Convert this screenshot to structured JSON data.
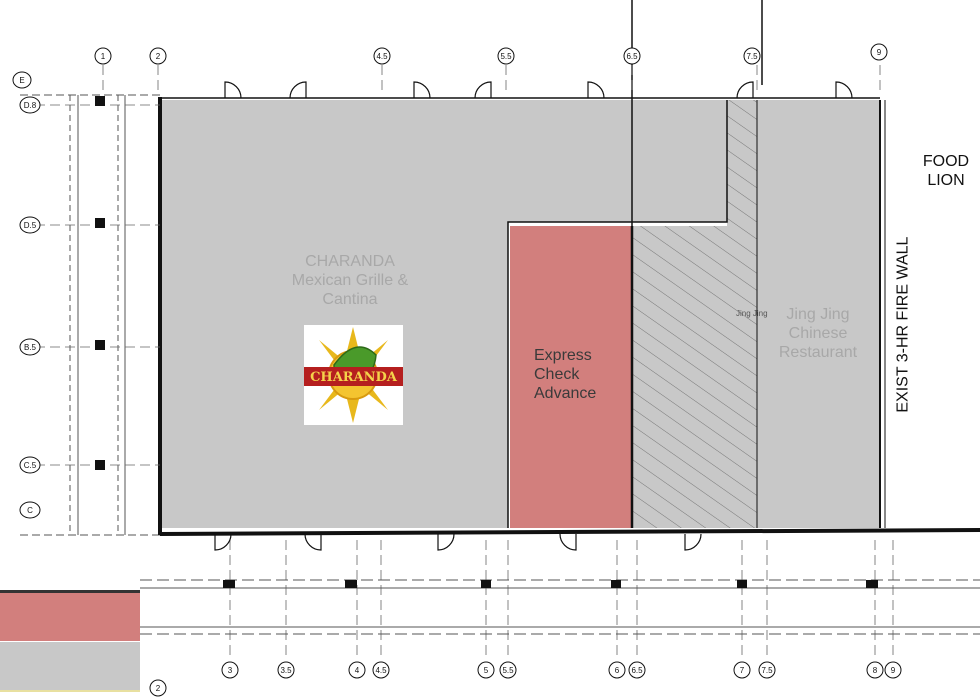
{
  "spaces": {
    "charanda": {
      "lines": [
        "CHARANDA",
        "Mexican Grille &",
        "Cantina"
      ],
      "logo_text": "CHARANDA",
      "fill": "#c8c8c8"
    },
    "express_check_advance": {
      "lines": [
        "Express",
        "Check",
        "Advance"
      ],
      "fill": "#d27f7d"
    },
    "jing_jing": {
      "small_label": "Jing Jing",
      "lines": [
        "Jing Jing",
        "Chinese",
        "Restaurant"
      ],
      "fill": "#c8c8c8"
    }
  },
  "neighbors": {
    "food_lion": [
      "FOOD",
      "LION"
    ],
    "fire_wall": "EXIST 3-HR FIRE WALL"
  },
  "legend": {
    "colors": [
      "#d27f7d",
      "#c8c8c8"
    ]
  },
  "grid_bubbles": {
    "top": [
      "1",
      "2",
      "4.5",
      "5.5",
      "6.5",
      "7.5",
      "9"
    ],
    "bottom": [
      "2",
      "3",
      "3.5",
      "4",
      "4.5",
      "5",
      "5.5",
      "6",
      "6.5",
      "7",
      "7.5",
      "8",
      "9"
    ],
    "left": [
      "E",
      "D.8",
      "D.5",
      "B.5",
      "C.5",
      "C"
    ]
  }
}
